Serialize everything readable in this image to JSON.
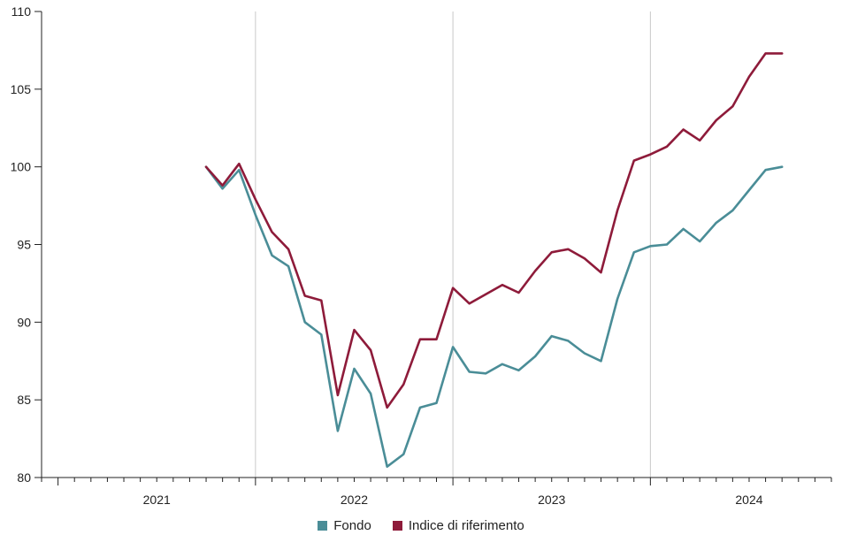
{
  "chart_data": {
    "type": "line",
    "title": "",
    "xlabel": "",
    "ylabel": "",
    "ylim": [
      80,
      110
    ],
    "y_ticks": [
      80,
      85,
      90,
      95,
      100,
      105,
      110
    ],
    "x_range": [
      "2020-12",
      "2024-12"
    ],
    "year_labels": [
      {
        "label": "2021",
        "year": 2021
      },
      {
        "label": "2022",
        "year": 2022
      },
      {
        "label": "2023",
        "year": 2023
      },
      {
        "label": "2024",
        "year": 2024
      }
    ],
    "year_boundaries": [
      "2022-01",
      "2023-01",
      "2024-01"
    ],
    "grid": "vertical lines at year boundaries",
    "legend_position": "bottom-center",
    "x": [
      "2021-10",
      "2021-11",
      "2021-12",
      "2022-01",
      "2022-02",
      "2022-03",
      "2022-04",
      "2022-05",
      "2022-06",
      "2022-07",
      "2022-08",
      "2022-09",
      "2022-10",
      "2022-11",
      "2022-12",
      "2023-01",
      "2023-02",
      "2023-03",
      "2023-04",
      "2023-05",
      "2023-06",
      "2023-07",
      "2023-08",
      "2023-09",
      "2023-10",
      "2023-11",
      "2023-12",
      "2024-01",
      "2024-02",
      "2024-03",
      "2024-04",
      "2024-05",
      "2024-06",
      "2024-07",
      "2024-08",
      "2024-09"
    ],
    "series": [
      {
        "name": "Fondo",
        "color": "#4a8d97",
        "values": [
          100.0,
          98.6,
          99.8,
          96.9,
          94.3,
          93.6,
          90.0,
          89.2,
          83.0,
          87.0,
          85.4,
          80.7,
          81.5,
          84.5,
          84.8,
          88.4,
          86.8,
          86.7,
          87.3,
          86.9,
          87.8,
          89.1,
          88.8,
          88.0,
          87.5,
          91.5,
          94.5,
          94.9,
          95.0,
          96.0,
          95.2,
          96.4,
          97.2,
          98.5,
          99.8,
          100.0
        ]
      },
      {
        "name": "Indice di riferimento",
        "color": "#8e1b3a",
        "values": [
          100.0,
          98.8,
          100.2,
          97.9,
          95.8,
          94.7,
          91.7,
          91.4,
          85.3,
          89.5,
          88.2,
          84.5,
          86.0,
          88.9,
          88.9,
          92.2,
          91.2,
          91.8,
          92.4,
          91.9,
          93.3,
          94.5,
          94.7,
          94.1,
          93.2,
          97.2,
          100.4,
          100.8,
          101.3,
          102.4,
          101.7,
          103.0,
          103.9,
          105.8,
          107.3,
          107.3
        ]
      }
    ]
  }
}
